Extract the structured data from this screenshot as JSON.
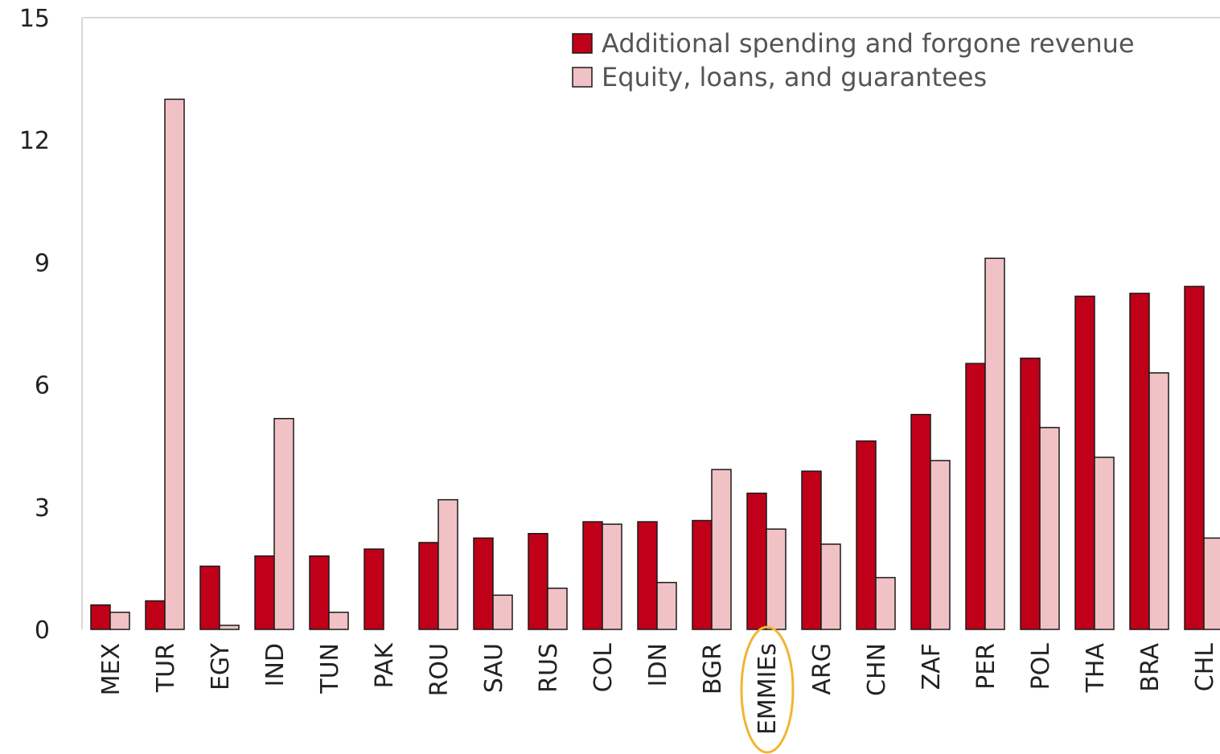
{
  "chart_data": {
    "type": "bar",
    "title": "",
    "xlabel": "",
    "ylabel": "",
    "ylim": [
      0,
      15
    ],
    "yticks": [
      0,
      3,
      6,
      9,
      12,
      15
    ],
    "grid": false,
    "legend_position": "top-right",
    "categories": [
      "MEX",
      "TUR",
      "EGY",
      "IND",
      "TUN",
      "PAK",
      "ROU",
      "SAU",
      "RUS",
      "COL",
      "IDN",
      "BGR",
      "EMMIEs",
      "ARG",
      "CHN",
      "ZAF",
      "PER",
      "POL",
      "THA",
      "BRA",
      "CHL"
    ],
    "highlight_category": "EMMIEs",
    "highlight_color": "#f2b533",
    "series": [
      {
        "name": "Additional spending and forgone revenue",
        "color": "#c00018",
        "values": [
          0.6,
          0.7,
          1.55,
          1.8,
          1.8,
          1.97,
          2.13,
          2.24,
          2.35,
          2.64,
          2.64,
          2.67,
          3.34,
          3.88,
          4.62,
          5.27,
          6.52,
          6.65,
          8.17,
          8.24,
          8.41
        ]
      },
      {
        "name": "Equity, loans, and guarantees",
        "color": "#f1c2c5",
        "values": [
          0.42,
          13.0,
          0.1,
          5.17,
          0.42,
          0,
          3.18,
          0.84,
          1.01,
          2.58,
          1.15,
          3.92,
          2.46,
          2.09,
          1.27,
          4.14,
          9.1,
          4.95,
          4.22,
          6.29,
          2.24
        ]
      }
    ]
  }
}
